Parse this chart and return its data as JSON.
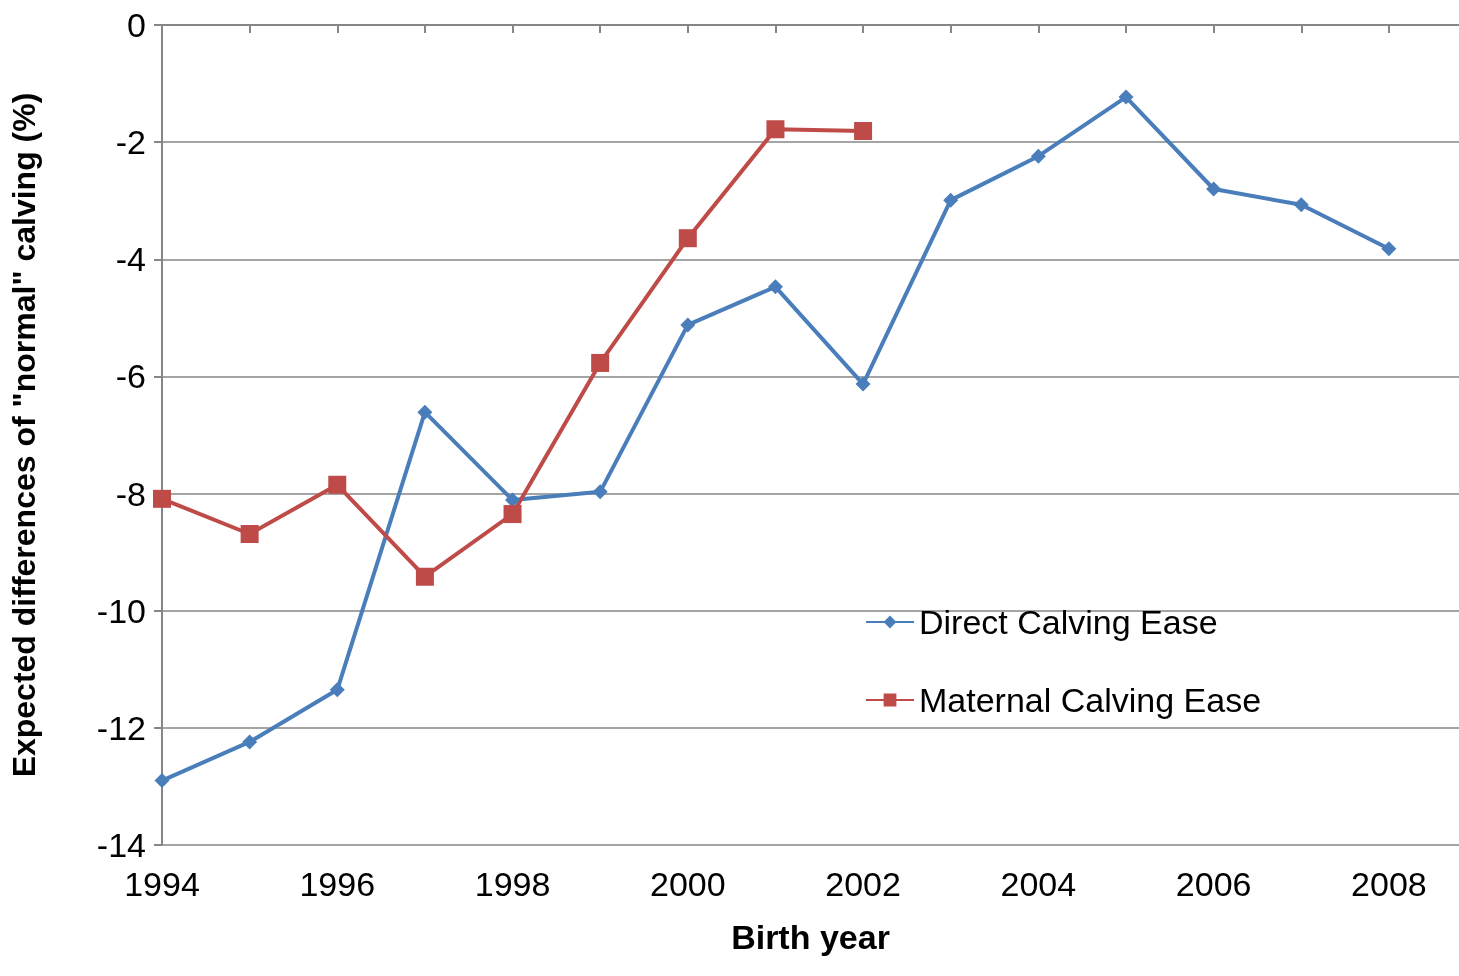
{
  "chart_data": {
    "type": "line",
    "xlabel": "Birth year",
    "ylabel": "Expected differences of \"normal\" calving (%)",
    "x": [
      1994,
      1995,
      1996,
      1997,
      1998,
      1999,
      2000,
      2001,
      2002,
      2003,
      2004,
      2005,
      2006,
      2007,
      2008
    ],
    "series": [
      {
        "name": "Direct Calving Ease",
        "color": "#4a7ebb",
        "marker": "diamond",
        "values": [
          -12.9,
          -12.24,
          -11.35,
          -6.61,
          -8.11,
          -7.97,
          -5.12,
          -4.47,
          -6.13,
          -2.99,
          -2.24,
          -1.23,
          -2.8,
          -3.07,
          -3.82
        ]
      },
      {
        "name": "Maternal Calving Ease",
        "color": "#be4b48",
        "marker": "square",
        "x": [
          1994,
          1995,
          1996,
          1997,
          1998,
          1999,
          2000,
          2001,
          2002
        ],
        "values": [
          -8.09,
          -8.69,
          -7.85,
          -9.42,
          -8.35,
          -5.77,
          -3.64,
          -1.78,
          -1.81
        ]
      }
    ],
    "xlim": [
      1994,
      2008.8
    ],
    "xticks": [
      1994,
      {
        "value": 1995,
        "label": null
      },
      1996,
      {
        "value": 1997,
        "label": null
      },
      1998,
      {
        "value": 1999,
        "label": null
      },
      2000,
      {
        "value": 2001,
        "label": null
      },
      2002,
      {
        "value": 2003,
        "label": null
      },
      2004,
      {
        "value": 2005,
        "label": null
      },
      2006,
      {
        "value": 2007,
        "label": null
      },
      2008
    ],
    "ylim": [
      -14,
      0
    ],
    "yticks": [
      -14,
      -12,
      -10,
      -8,
      -6,
      -4,
      -2,
      0
    ],
    "grid": "y",
    "legend": "right",
    "line_style": "solid"
  }
}
